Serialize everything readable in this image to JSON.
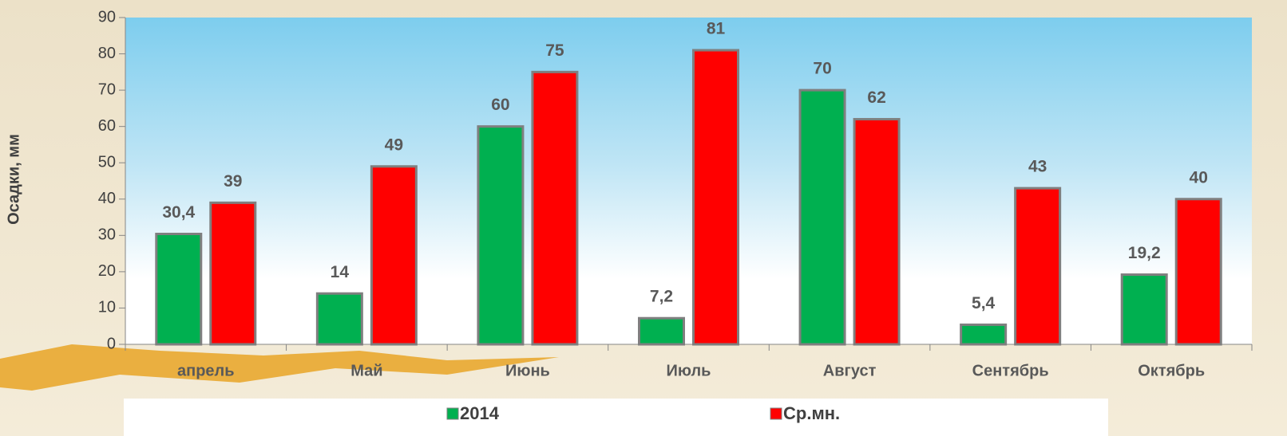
{
  "chart_data": {
    "type": "bar",
    "y_label": "Осадки, мм",
    "categories": [
      "апрель",
      "Май",
      "Июнь",
      "Июль",
      "Август",
      "Сентябрь",
      "Октябрь"
    ],
    "series": [
      {
        "name": "2014",
        "color": "#00b050",
        "values": [
          30.4,
          14,
          60,
          7.2,
          70,
          5.4,
          19.2
        ],
        "value_labels": [
          "30,4",
          "14",
          "60",
          "7,2",
          "70",
          "5,4",
          "19,2"
        ]
      },
      {
        "name": "Ср.мн.",
        "color": "#ff0000",
        "values": [
          39,
          49,
          75,
          81,
          62,
          43,
          40
        ]
      }
    ],
    "ylim": [
      0,
      90
    ],
    "yticks": [
      0,
      10,
      20,
      30,
      40,
      50,
      60,
      70,
      80,
      90
    ]
  }
}
